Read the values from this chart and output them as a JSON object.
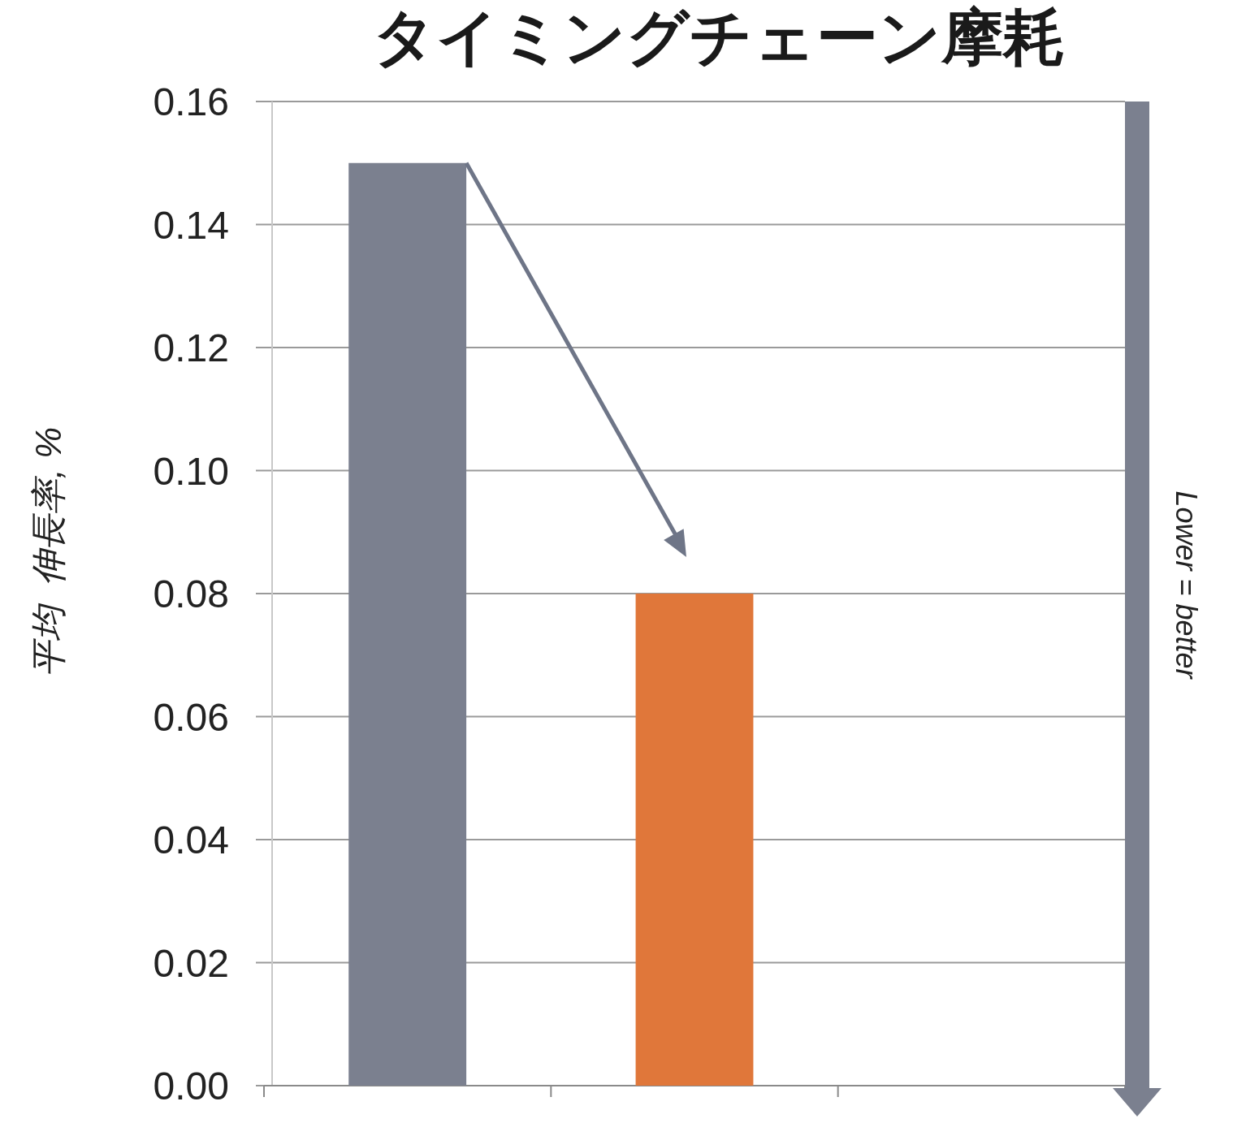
{
  "chart_data": {
    "type": "bar",
    "title": "タイミングチェーン摩耗",
    "ylabel": "平均  伸長率, %",
    "categories": [
      null,
      null,
      null
    ],
    "values": [
      0.15,
      0.08,
      null
    ],
    "colors": [
      "#7b808f",
      "#e0773a",
      null
    ],
    "ylim": [
      0,
      0.16
    ],
    "yticks": [
      {
        "value": 0,
        "label": "0.00"
      },
      {
        "value": 0.02,
        "label": "0.02"
      },
      {
        "value": 0.04,
        "label": "0.04"
      },
      {
        "value": 0.06,
        "label": "0.06"
      },
      {
        "value": 0.08,
        "label": "0.08"
      },
      {
        "value": 0.1,
        "label": "0.10"
      },
      {
        "value": 0.12,
        "label": "0.12"
      },
      {
        "value": 0.14,
        "label": "0.14"
      },
      {
        "value": 0.16,
        "label": "0.16"
      }
    ],
    "grid": "y",
    "annotations": [
      "Lower = better"
    ]
  }
}
